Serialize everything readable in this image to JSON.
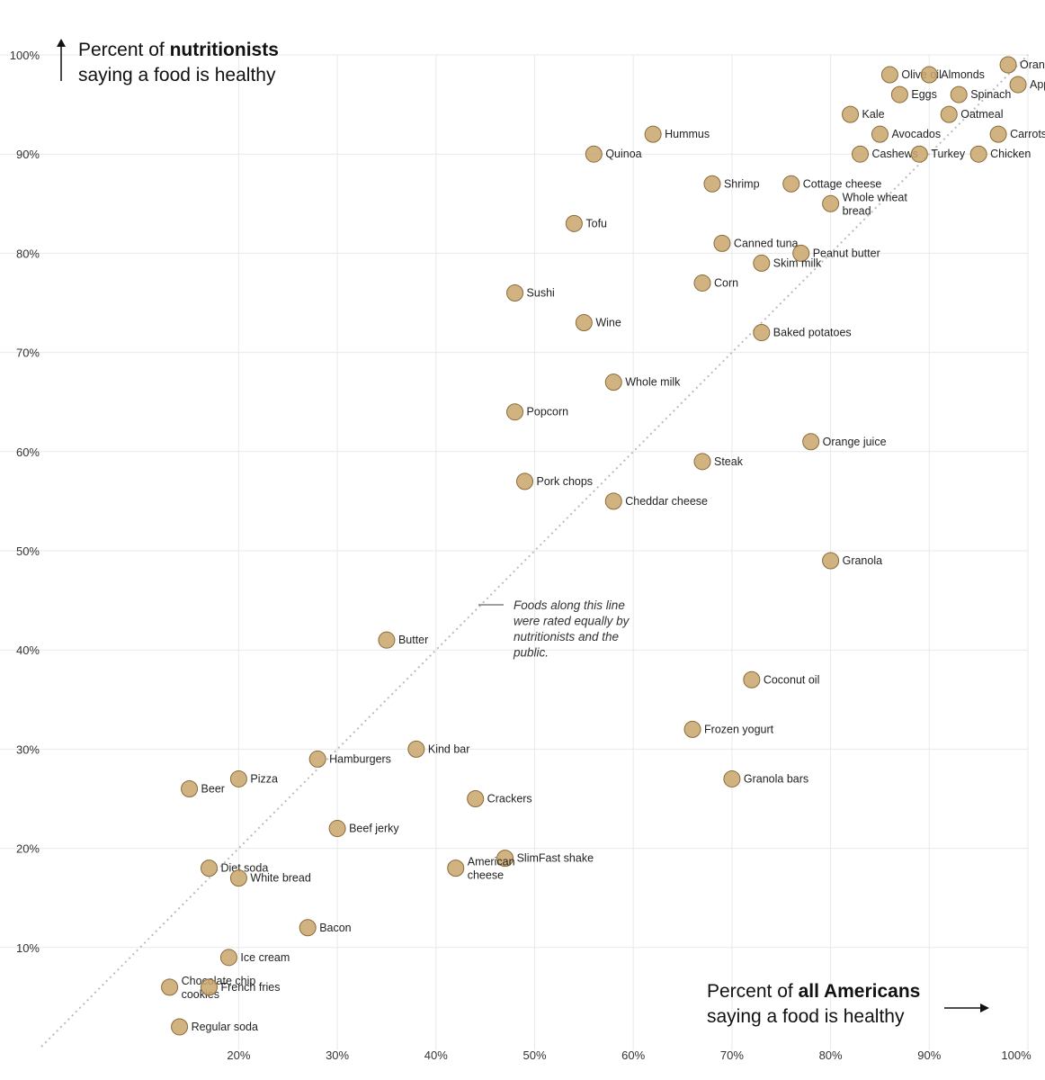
{
  "chart_data": {
    "type": "scatter",
    "title": "",
    "xlabel_line1_pre": "Percent of ",
    "xlabel_line1_bold": "all Americans",
    "xlabel_line2": "saying a food is healthy",
    "ylabel_line1_pre": "Percent of ",
    "ylabel_line1_bold": "nutritionists",
    "ylabel_line2": "saying a food is healthy",
    "xlim": [
      10,
      100
    ],
    "ylim": [
      0,
      100
    ],
    "x_ticks": [
      {
        "value": 20,
        "label": "20%"
      },
      {
        "value": 30,
        "label": "30%"
      },
      {
        "value": 40,
        "label": "40%"
      },
      {
        "value": 50,
        "label": "50%"
      },
      {
        "value": 60,
        "label": "60%"
      },
      {
        "value": 70,
        "label": "70%"
      },
      {
        "value": 80,
        "label": "80%"
      },
      {
        "value": 90,
        "label": "90%"
      },
      {
        "value": 100,
        "label": "100%"
      }
    ],
    "y_ticks": [
      {
        "value": 10,
        "label": "10%"
      },
      {
        "value": 20,
        "label": "20%"
      },
      {
        "value": 30,
        "label": "30%"
      },
      {
        "value": 40,
        "label": "40%"
      },
      {
        "value": 50,
        "label": "50%"
      },
      {
        "value": 60,
        "label": "60%"
      },
      {
        "value": 70,
        "label": "70%"
      },
      {
        "value": 80,
        "label": "80%"
      },
      {
        "value": 90,
        "label": "90%"
      },
      {
        "value": 100,
        "label": "100%"
      }
    ],
    "grid": true,
    "equality_line_note": "Foods along this line were rated equally by nutritionists and the public.",
    "colors": {
      "grid": "#e9e9e9",
      "equality_line": "#bbbbbb",
      "text": "#222222",
      "point_fill": "#c9a66b",
      "point_stroke": "#8a6a3a"
    },
    "points": [
      {
        "name": "Kale",
        "x": 82,
        "y": 94
      },
      {
        "name": "Olive oil",
        "x": 86,
        "y": 98
      },
      {
        "name": "Eggs",
        "x": 87,
        "y": 96
      },
      {
        "name": "Almonds",
        "x": 90,
        "y": 98
      },
      {
        "name": "Orange",
        "x": 98,
        "y": 99
      },
      {
        "name": "Spinach",
        "x": 93,
        "y": 96
      },
      {
        "name": "Apple",
        "x": 99,
        "y": 97
      },
      {
        "name": "Avocados",
        "x": 85,
        "y": 92
      },
      {
        "name": "Oatmeal",
        "x": 92,
        "y": 94
      },
      {
        "name": "Carrots",
        "x": 97,
        "y": 92
      },
      {
        "name": "Cashews",
        "x": 83,
        "y": 90
      },
      {
        "name": "Turkey",
        "x": 89,
        "y": 90
      },
      {
        "name": "Chicken",
        "x": 95,
        "y": 90
      },
      {
        "name": "Quinoa",
        "x": 56,
        "y": 90
      },
      {
        "name": "Hummus",
        "x": 62,
        "y": 92
      },
      {
        "name": "Cottage cheese",
        "x": 76,
        "y": 87
      },
      {
        "name": "Shrimp",
        "x": 68,
        "y": 87
      },
      {
        "name": "Whole wheat bread",
        "x": 80,
        "y": 85
      },
      {
        "name": "Tofu",
        "x": 54,
        "y": 83
      },
      {
        "name": "Canned tuna",
        "x": 69,
        "y": 81
      },
      {
        "name": "Peanut butter",
        "x": 77,
        "y": 80
      },
      {
        "name": "Skim milk",
        "x": 73,
        "y": 79
      },
      {
        "name": "Corn",
        "x": 67,
        "y": 77
      },
      {
        "name": "Sushi",
        "x": 48,
        "y": 76
      },
      {
        "name": "Wine",
        "x": 55,
        "y": 73
      },
      {
        "name": "Baked potatoes",
        "x": 73,
        "y": 72
      },
      {
        "name": "Whole milk",
        "x": 58,
        "y": 67
      },
      {
        "name": "Popcorn",
        "x": 48,
        "y": 64
      },
      {
        "name": "Steak",
        "x": 67,
        "y": 59
      },
      {
        "name": "Orange juice",
        "x": 78,
        "y": 61
      },
      {
        "name": "Pork chops",
        "x": 49,
        "y": 57
      },
      {
        "name": "Cheddar cheese",
        "x": 58,
        "y": 55
      },
      {
        "name": "Granola",
        "x": 80,
        "y": 49
      },
      {
        "name": "Coconut oil",
        "x": 72,
        "y": 37
      },
      {
        "name": "Butter",
        "x": 35,
        "y": 41
      },
      {
        "name": "Frozen yogurt",
        "x": 66,
        "y": 32
      },
      {
        "name": "Granola bars",
        "x": 70,
        "y": 27
      },
      {
        "name": "Hamburgers",
        "x": 28,
        "y": 29
      },
      {
        "name": "Kind bar",
        "x": 38,
        "y": 30
      },
      {
        "name": "Pizza",
        "x": 20,
        "y": 27
      },
      {
        "name": "Beer",
        "x": 15,
        "y": 26
      },
      {
        "name": "Crackers",
        "x": 44,
        "y": 25
      },
      {
        "name": "Beef jerky",
        "x": 30,
        "y": 22
      },
      {
        "name": "SlimFast shake",
        "x": 47,
        "y": 19
      },
      {
        "name": "American cheese",
        "x": 42,
        "y": 18
      },
      {
        "name": "Diet soda",
        "x": 17,
        "y": 18
      },
      {
        "name": "White bread",
        "x": 20,
        "y": 17
      },
      {
        "name": "Bacon",
        "x": 27,
        "y": 12
      },
      {
        "name": "Ice cream",
        "x": 19,
        "y": 9
      },
      {
        "name": "Chocolate chip cookies",
        "x": 13,
        "y": 6
      },
      {
        "name": "French fries",
        "x": 17,
        "y": 6
      },
      {
        "name": "Regular soda",
        "x": 14,
        "y": 2
      }
    ]
  }
}
